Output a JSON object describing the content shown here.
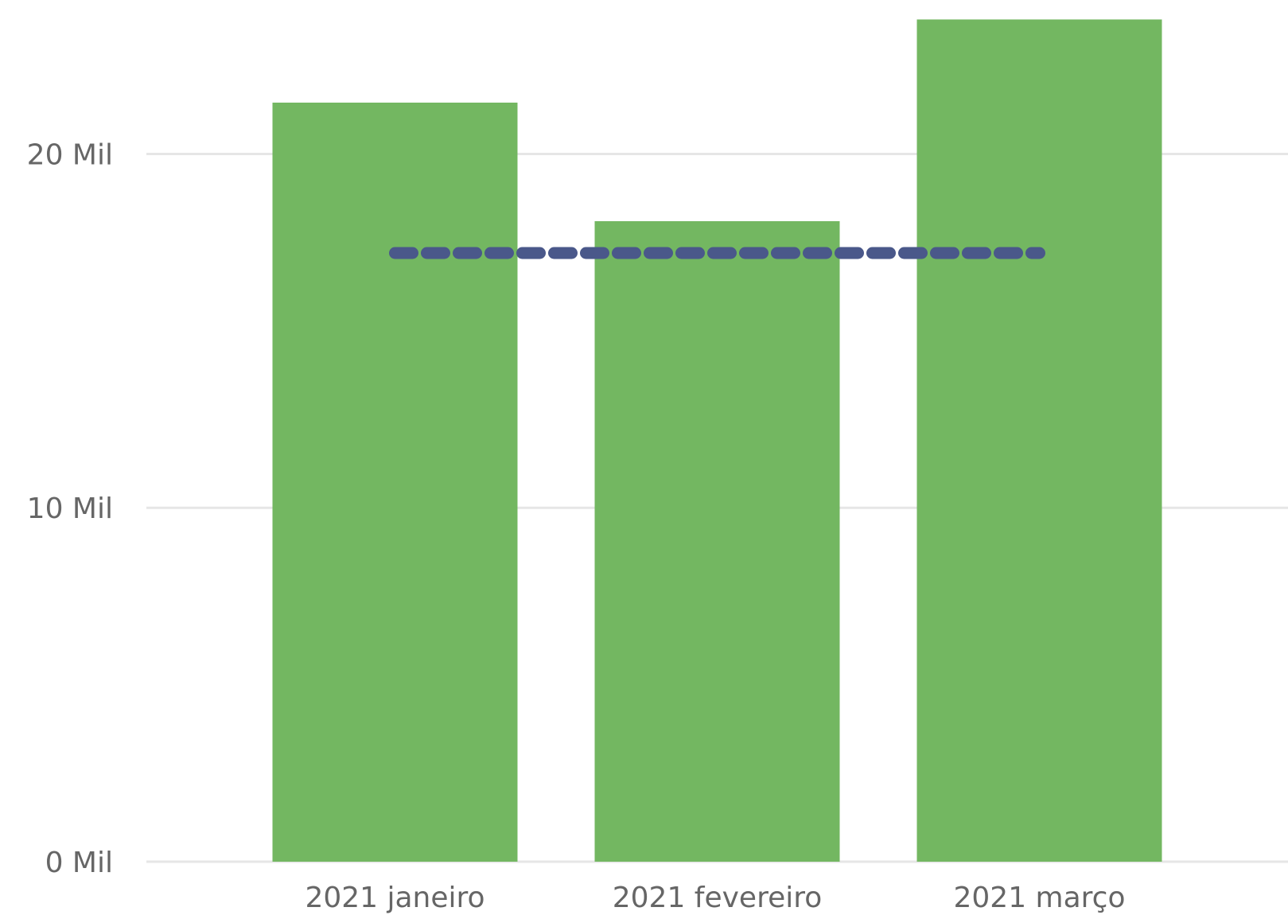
{
  "chart_data": {
    "type": "bar",
    "categories": [
      "2021 janeiro",
      "2021 fevereiro",
      "2021 março"
    ],
    "values": [
      21450,
      18100,
      23800
    ],
    "yticks": [
      {
        "value": 0,
        "label": "0 Mil"
      },
      {
        "value": 10000,
        "label": "10 Mil"
      },
      {
        "value": 20000,
        "label": "20 Mil"
      }
    ],
    "ylim": [
      0,
      24350
    ],
    "reference_line": {
      "value": 17200,
      "style": "dashed"
    },
    "grid": true,
    "colors": {
      "bar": "#73b761",
      "reference_line": "#4a588a",
      "grid": "#e6e6e6",
      "text": "#666666"
    }
  }
}
